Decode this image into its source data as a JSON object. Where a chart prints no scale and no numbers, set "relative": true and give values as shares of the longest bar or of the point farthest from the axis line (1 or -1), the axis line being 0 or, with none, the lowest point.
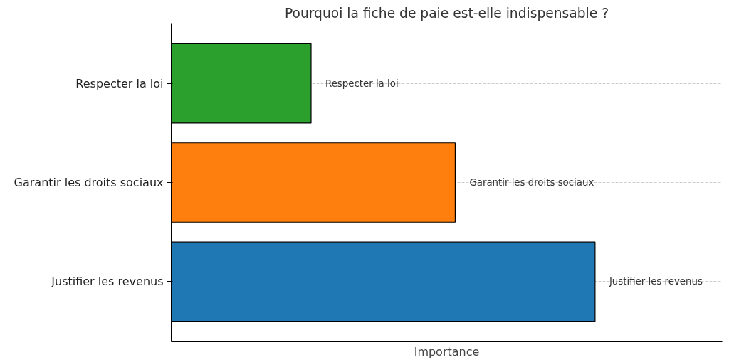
{
  "chart_data": {
    "type": "bar",
    "orientation": "horizontal",
    "relative": true,
    "title": "Pourquoi la fiche de paie est-elle indispensable ?",
    "xlabel": "Importance",
    "categories": [
      "Respecter la loi",
      "Garantir les droits sociaux",
      "Justifier les revenus"
    ],
    "values": [
      0.33,
      0.67,
      1
    ],
    "colors": [
      "#2ca02c",
      "#ff7f0e",
      "#1f77b4"
    ],
    "grid": "y",
    "annotations": [
      {
        "text": "Respecter la loi",
        "x": 0.33,
        "y": "Respecter la loi"
      },
      {
        "text": "Garantir les droits sociaux",
        "x": 0.67,
        "y": "Garantir les droits sociaux"
      },
      {
        "text": "Justifier les revenus",
        "x": 1,
        "y": "Justifier les revenus"
      }
    ]
  }
}
